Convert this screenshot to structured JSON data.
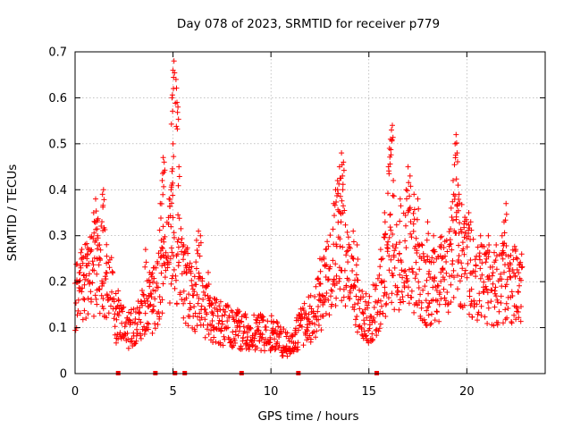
{
  "chart_data": {
    "type": "scatter",
    "title": "Day 078 of 2023, SRMTID for receiver p779",
    "xlabel": "GPS time / hours",
    "ylabel": "SRMTID / TECUs",
    "xlim": [
      0,
      24
    ],
    "ylim": [
      0,
      0.7
    ],
    "xticks": [
      0,
      5,
      10,
      15,
      20
    ],
    "xtick_labels": [
      "0",
      "5",
      "10",
      "15",
      "20"
    ],
    "yticks": [
      0,
      0.1,
      0.2,
      0.3,
      0.4,
      0.5,
      0.6,
      0.7
    ],
    "ytick_labels": [
      "0",
      "0.1",
      "0.2",
      "0.3",
      "0.4",
      "0.5",
      "0.6",
      "0.7"
    ],
    "grid": true,
    "marker": "+",
    "series_color": "#ff0000",
    "activity_profile": [
      [
        0.0,
        0.17
      ],
      [
        0.4,
        0.19
      ],
      [
        0.8,
        0.21
      ],
      [
        1.2,
        0.24
      ],
      [
        1.5,
        0.22
      ],
      [
        1.8,
        0.2
      ],
      [
        2.1,
        0.12
      ],
      [
        2.5,
        0.1
      ],
      [
        3.0,
        0.1
      ],
      [
        3.5,
        0.13
      ],
      [
        4.0,
        0.16
      ],
      [
        4.5,
        0.2
      ],
      [
        4.8,
        0.26
      ],
      [
        5.0,
        0.3
      ],
      [
        5.3,
        0.25
      ],
      [
        5.6,
        0.2
      ],
      [
        6.0,
        0.17
      ],
      [
        6.5,
        0.15
      ],
      [
        7.0,
        0.12
      ],
      [
        8.0,
        0.1
      ],
      [
        9.0,
        0.09
      ],
      [
        10.0,
        0.09
      ],
      [
        10.5,
        0.07
      ],
      [
        11.0,
        0.06
      ],
      [
        11.5,
        0.1
      ],
      [
        12.0,
        0.12
      ],
      [
        12.5,
        0.16
      ],
      [
        13.0,
        0.22
      ],
      [
        13.5,
        0.3
      ],
      [
        14.0,
        0.2
      ],
      [
        14.5,
        0.14
      ],
      [
        15.0,
        0.12
      ],
      [
        15.5,
        0.15
      ],
      [
        16.0,
        0.25
      ],
      [
        16.5,
        0.22
      ],
      [
        17.0,
        0.26
      ],
      [
        17.5,
        0.22
      ],
      [
        18.0,
        0.18
      ],
      [
        18.5,
        0.2
      ],
      [
        19.0,
        0.22
      ],
      [
        19.5,
        0.28
      ],
      [
        20.0,
        0.23
      ],
      [
        20.5,
        0.2
      ],
      [
        21.0,
        0.2
      ],
      [
        21.5,
        0.18
      ],
      [
        22.0,
        0.2
      ],
      [
        22.5,
        0.19
      ],
      [
        22.8,
        0.18
      ]
    ],
    "spikes": [
      [
        0.25,
        0.22
      ],
      [
        0.45,
        0.215
      ],
      [
        0.6,
        0.25
      ],
      [
        0.7,
        0.24
      ],
      [
        0.95,
        0.35
      ],
      [
        1.05,
        0.38
      ],
      [
        1.1,
        0.33
      ],
      [
        1.15,
        0.3
      ],
      [
        1.4,
        0.39
      ],
      [
        1.45,
        0.4
      ],
      [
        1.25,
        0.28
      ],
      [
        1.6,
        0.24
      ],
      [
        2.2,
        0.18
      ],
      [
        3.6,
        0.27
      ],
      [
        3.8,
        0.22
      ],
      [
        4.0,
        0.23
      ],
      [
        4.4,
        0.29
      ],
      [
        4.5,
        0.32
      ],
      [
        4.35,
        0.37
      ],
      [
        4.45,
        0.42
      ],
      [
        4.5,
        0.47
      ],
      [
        4.55,
        0.46
      ],
      [
        4.8,
        0.38
      ],
      [
        4.9,
        0.4
      ],
      [
        4.95,
        0.44
      ],
      [
        5.0,
        0.5
      ],
      [
        4.95,
        0.6
      ],
      [
        5.0,
        0.66
      ],
      [
        5.05,
        0.68
      ],
      [
        5.15,
        0.64
      ],
      [
        5.2,
        0.59
      ],
      [
        5.25,
        0.58
      ],
      [
        5.3,
        0.45
      ],
      [
        5.55,
        0.28
      ],
      [
        5.7,
        0.27
      ],
      [
        6.2,
        0.29
      ],
      [
        6.3,
        0.31
      ],
      [
        6.4,
        0.3
      ],
      [
        6.8,
        0.22
      ],
      [
        12.5,
        0.25
      ],
      [
        12.8,
        0.27
      ],
      [
        13.2,
        0.37
      ],
      [
        13.3,
        0.4
      ],
      [
        13.4,
        0.42
      ],
      [
        13.5,
        0.45
      ],
      [
        13.6,
        0.48
      ],
      [
        13.7,
        0.46
      ],
      [
        13.65,
        0.43
      ],
      [
        13.55,
        0.35
      ],
      [
        14.2,
        0.31
      ],
      [
        14.4,
        0.28
      ],
      [
        15.6,
        0.27
      ],
      [
        15.8,
        0.35
      ],
      [
        16.0,
        0.45
      ],
      [
        16.05,
        0.49
      ],
      [
        16.1,
        0.51
      ],
      [
        16.15,
        0.53
      ],
      [
        16.2,
        0.54
      ],
      [
        16.25,
        0.42
      ],
      [
        16.6,
        0.38
      ],
      [
        16.9,
        0.4
      ],
      [
        17.0,
        0.45
      ],
      [
        17.1,
        0.43
      ],
      [
        17.3,
        0.39
      ],
      [
        17.5,
        0.38
      ],
      [
        18.0,
        0.33
      ],
      [
        18.3,
        0.3
      ],
      [
        18.7,
        0.28
      ],
      [
        19.2,
        0.36
      ],
      [
        19.3,
        0.42
      ],
      [
        19.4,
        0.5
      ],
      [
        19.45,
        0.52
      ],
      [
        19.5,
        0.48
      ],
      [
        19.55,
        0.41
      ],
      [
        19.6,
        0.39
      ],
      [
        19.9,
        0.34
      ],
      [
        20.1,
        0.35
      ],
      [
        20.2,
        0.33
      ],
      [
        20.7,
        0.3
      ],
      [
        21.1,
        0.3
      ],
      [
        21.5,
        0.28
      ],
      [
        21.8,
        0.3
      ],
      [
        21.9,
        0.33
      ],
      [
        22.0,
        0.37
      ],
      [
        22.5,
        0.27
      ],
      [
        22.8,
        0.26
      ]
    ],
    "baseline_markers": [
      2.2,
      4.1,
      5.1,
      5.6,
      8.5,
      11.4,
      15.4
    ]
  }
}
